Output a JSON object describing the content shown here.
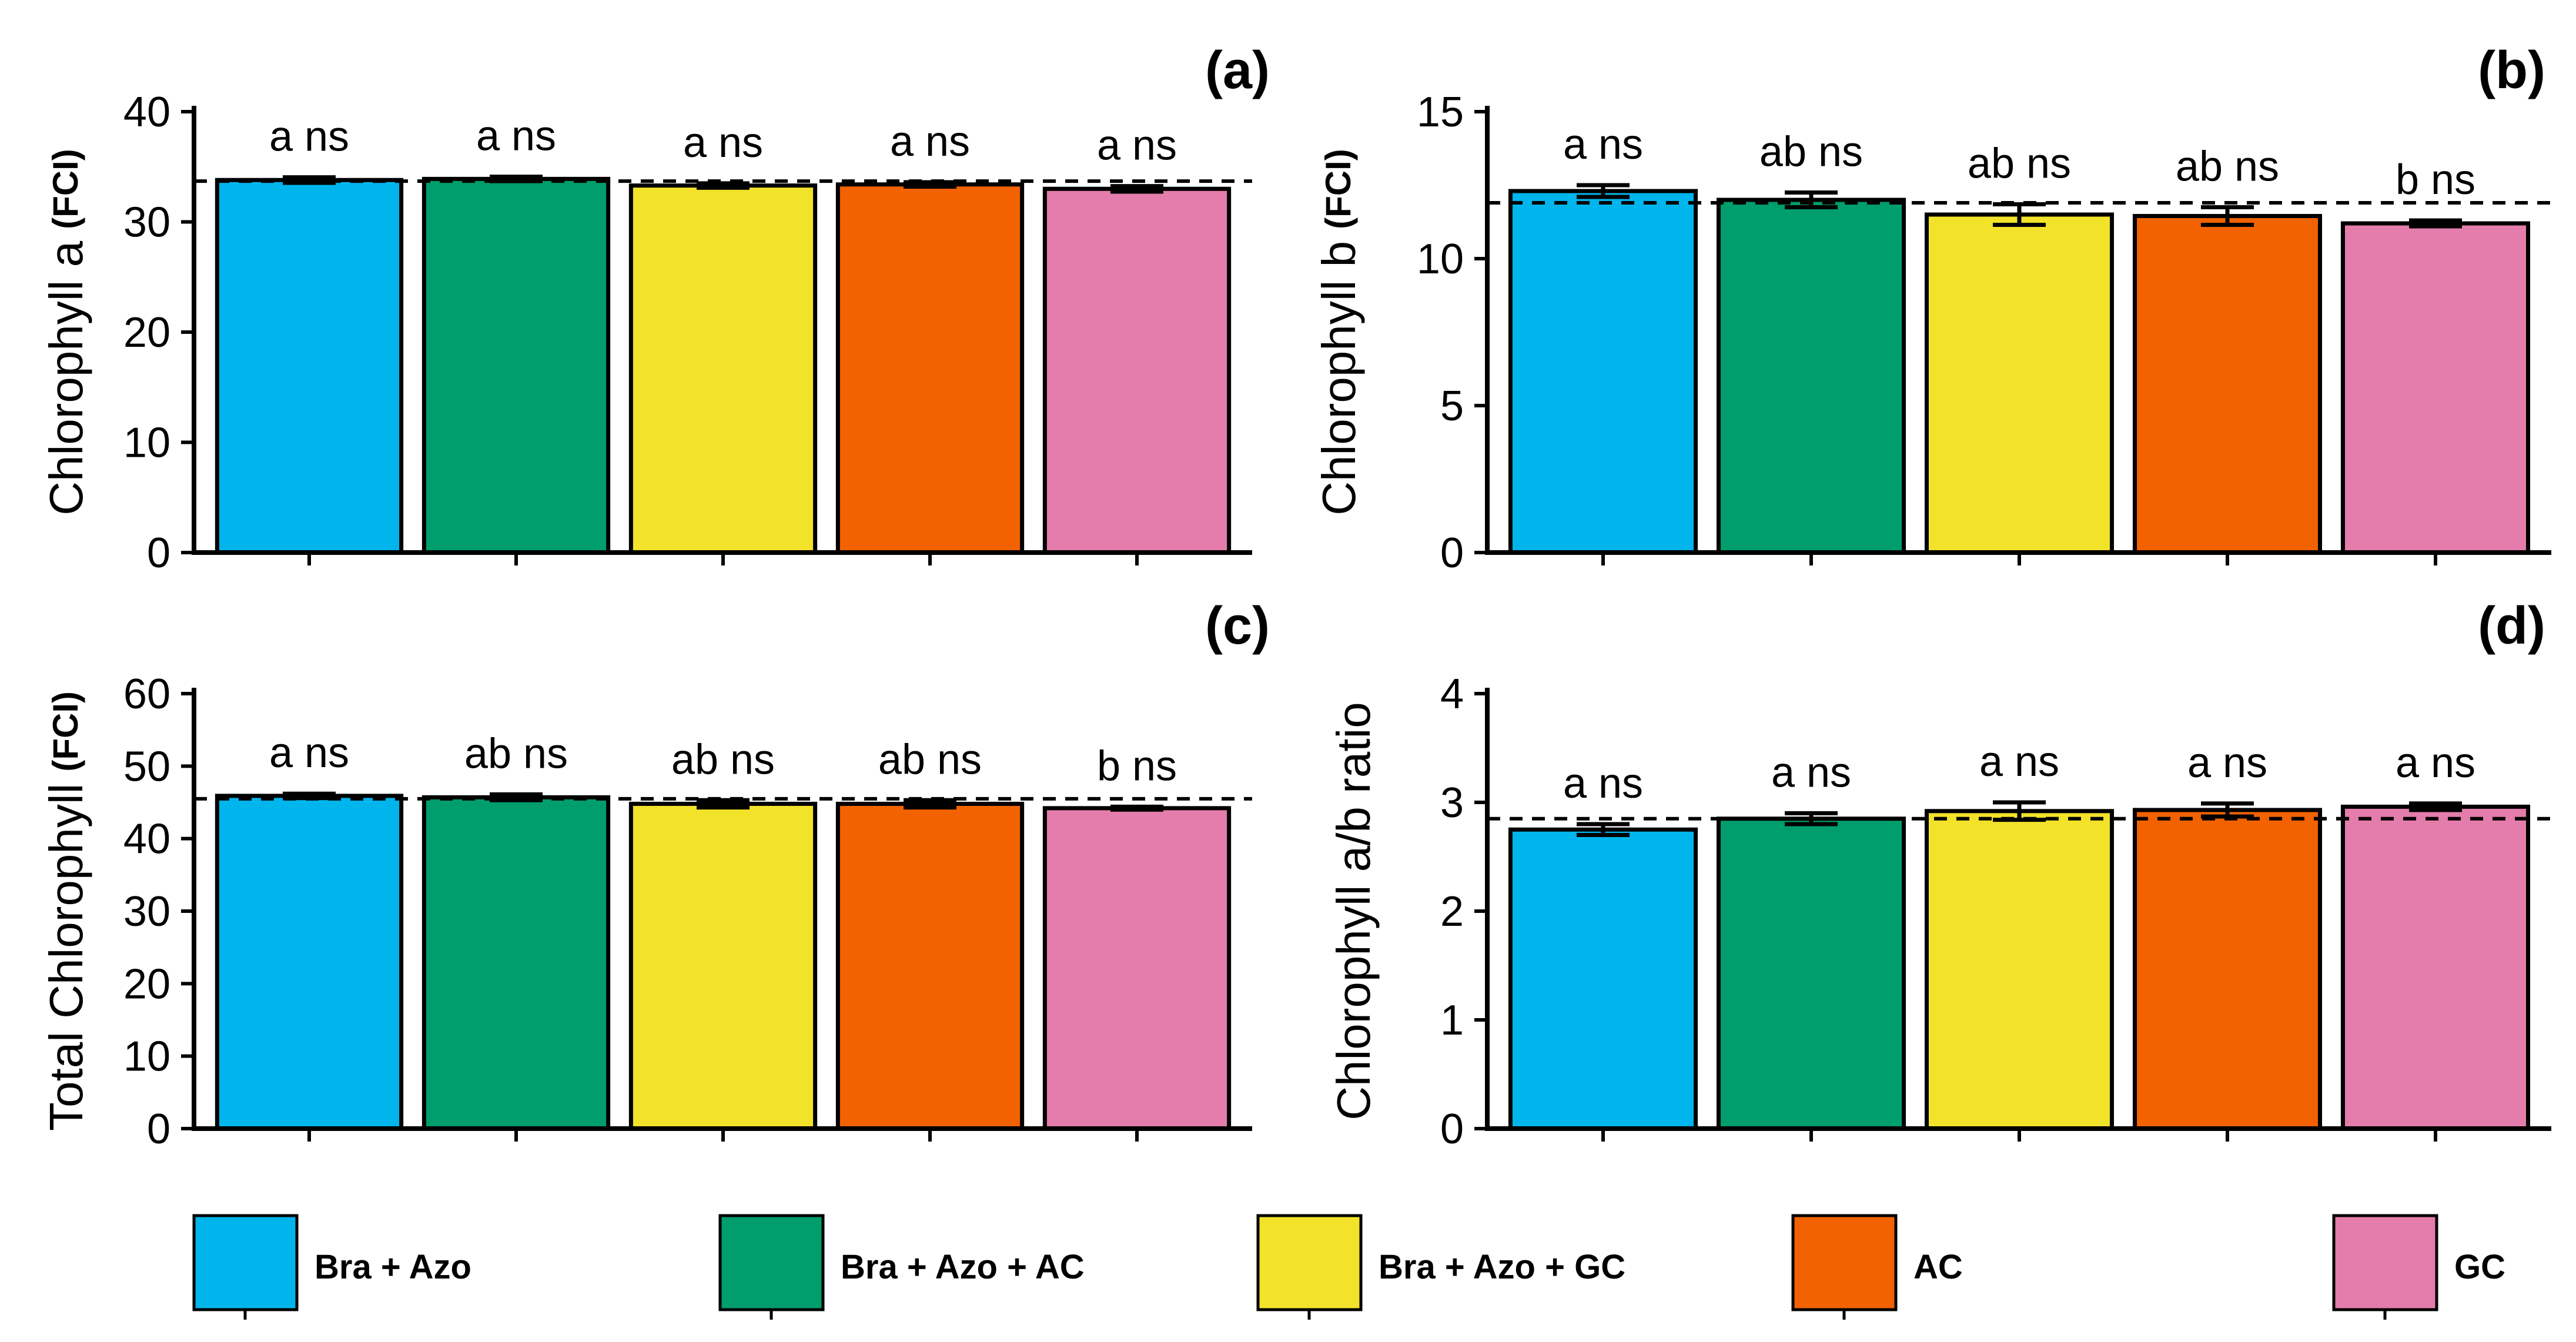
{
  "colors": {
    "Bra + Azo": "#00b5ec",
    "Bra + Azo + AC": "#009e6c",
    "Bra + Azo + GC": "#f2e22a",
    "AC": "#f26200",
    "GC": "#e47dab"
  },
  "legend": {
    "items": [
      "Bra + Azo",
      "Bra + Azo + AC",
      "Bra + Azo + GC",
      "AC",
      "GC"
    ]
  },
  "chart_data": [
    {
      "type": "bar",
      "panel_label": "(a)",
      "ylabel": "Chlorophyll a",
      "ylabel_unit": "(FCI)",
      "categories": [
        "Bra + Azo",
        "Bra + Azo + AC",
        "Bra + Azo + GC",
        "AC",
        "GC"
      ],
      "values": [
        33.8,
        33.9,
        33.3,
        33.4,
        33.0
      ],
      "errors": [
        0.25,
        0.2,
        0.2,
        0.2,
        0.25
      ],
      "labels": [
        "a ns",
        "a ns",
        "a ns",
        "a ns",
        "a ns"
      ],
      "reference_line": 33.7,
      "ylim": [
        0,
        40
      ],
      "yticks": [
        "0",
        "10",
        "20",
        "30",
        "40"
      ]
    },
    {
      "type": "bar",
      "panel_label": "(b)",
      "ylabel": "Chlorophyll b",
      "ylabel_unit": "(FCI)",
      "categories": [
        "Bra + Azo",
        "Bra + Azo + AC",
        "Bra + Azo + GC",
        "AC",
        "GC"
      ],
      "values": [
        12.3,
        12.0,
        11.5,
        11.45,
        11.2
      ],
      "errors": [
        0.2,
        0.25,
        0.35,
        0.3,
        0.1
      ],
      "labels": [
        "a ns",
        "ab ns",
        "ab ns",
        "ab ns",
        "b ns"
      ],
      "reference_line": 11.9,
      "ylim": [
        0,
        15
      ],
      "yticks": [
        "0",
        "5",
        "10",
        "15"
      ]
    },
    {
      "type": "bar",
      "panel_label": "(c)",
      "ylabel": "Total Chlorophyll",
      "ylabel_unit": "(FCI)",
      "categories": [
        "Bra + Azo",
        "Bra + Azo + AC",
        "Bra + Azo + GC",
        "AC",
        "GC"
      ],
      "values": [
        45.9,
        45.7,
        44.8,
        44.8,
        44.2
      ],
      "errors": [
        0.3,
        0.4,
        0.5,
        0.5,
        0.2
      ],
      "labels": [
        "a ns",
        "ab ns",
        "ab ns",
        "ab ns",
        "b ns"
      ],
      "reference_line": 45.5,
      "ylim": [
        0,
        60
      ],
      "yticks": [
        "0",
        "10",
        "20",
        "30",
        "40",
        "50",
        "60"
      ]
    },
    {
      "type": "bar",
      "panel_label": "(d)",
      "ylabel": "Chlorophyll a/b ratio",
      "ylabel_unit": "",
      "categories": [
        "Bra + Azo",
        "Bra + Azo + AC",
        "Bra + Azo + GC",
        "AC",
        "GC"
      ],
      "values": [
        2.75,
        2.85,
        2.92,
        2.93,
        2.96
      ],
      "errors": [
        0.05,
        0.05,
        0.08,
        0.06,
        0.03
      ],
      "labels": [
        "a ns",
        "a ns",
        "a ns",
        "a ns",
        "a ns"
      ],
      "reference_line": 2.85,
      "ylim": [
        0,
        4
      ],
      "yticks": [
        "0",
        "1",
        "2",
        "3",
        "4"
      ]
    }
  ]
}
